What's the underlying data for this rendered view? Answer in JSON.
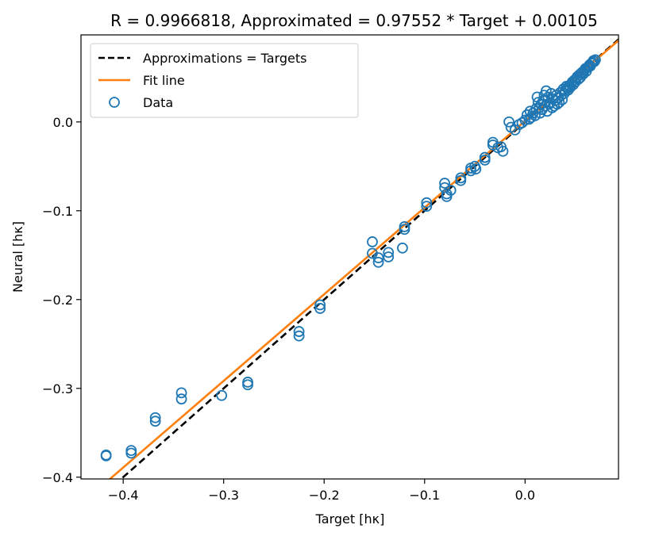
{
  "chart_data": {
    "type": "scatter",
    "title": "R = 0.9966818, Approximated = 0.97552 * Target + 0.00105",
    "xlabel": "Target [hκ]",
    "ylabel": "Neural [hκ]",
    "xlim": [
      -0.442,
      0.093
    ],
    "ylim": [
      -0.402,
      0.098
    ],
    "x_ticks": [
      -0.4,
      -0.3,
      -0.2,
      -0.1,
      0.0
    ],
    "x_tick_labels": [
      "−0.4",
      "−0.3",
      "−0.2",
      "−0.1",
      "0.0"
    ],
    "y_ticks": [
      -0.4,
      -0.3,
      -0.2,
      -0.1,
      0.0
    ],
    "y_tick_labels": [
      "−0.4",
      "−0.3",
      "−0.2",
      "−0.1",
      "0.0"
    ],
    "grid": false,
    "legend_position": "top-left",
    "legend": [
      "Approximations = Targets",
      "Fit line",
      "Data"
    ],
    "identity_line": {
      "name": "Approximations = Targets",
      "slope": 1,
      "intercept": 0,
      "color": "#000000",
      "style": "dashed"
    },
    "fit_line": {
      "name": "Fit line",
      "slope": 0.97552,
      "intercept": 0.00105,
      "color": "#ff7f0e"
    },
    "series": [
      {
        "name": "Data",
        "color": "#1f77b4",
        "marker": "open-circle",
        "points": [
          [
            -0.417,
            -0.375
          ],
          [
            -0.417,
            -0.376
          ],
          [
            -0.392,
            -0.37
          ],
          [
            -0.392,
            -0.373
          ],
          [
            -0.368,
            -0.333
          ],
          [
            -0.368,
            -0.337
          ],
          [
            -0.342,
            -0.305
          ],
          [
            -0.342,
            -0.312
          ],
          [
            -0.302,
            -0.308
          ],
          [
            -0.276,
            -0.293
          ],
          [
            -0.276,
            -0.296
          ],
          [
            -0.225,
            -0.236
          ],
          [
            -0.225,
            -0.241
          ],
          [
            -0.204,
            -0.206
          ],
          [
            -0.204,
            -0.21
          ],
          [
            -0.152,
            -0.135
          ],
          [
            -0.152,
            -0.148
          ],
          [
            -0.146,
            -0.153
          ],
          [
            -0.146,
            -0.158
          ],
          [
            -0.136,
            -0.147
          ],
          [
            -0.136,
            -0.152
          ],
          [
            -0.12,
            -0.118
          ],
          [
            -0.12,
            -0.121
          ],
          [
            -0.122,
            -0.142
          ],
          [
            -0.098,
            -0.091
          ],
          [
            -0.098,
            -0.095
          ],
          [
            -0.08,
            -0.069
          ],
          [
            -0.08,
            -0.074
          ],
          [
            -0.078,
            -0.081
          ],
          [
            -0.078,
            -0.084
          ],
          [
            -0.074,
            -0.077
          ],
          [
            -0.064,
            -0.063
          ],
          [
            -0.064,
            -0.066
          ],
          [
            -0.054,
            -0.052
          ],
          [
            -0.054,
            -0.055
          ],
          [
            -0.05,
            -0.05
          ],
          [
            -0.049,
            -0.053
          ],
          [
            -0.04,
            -0.04
          ],
          [
            -0.04,
            -0.043
          ],
          [
            -0.032,
            -0.023
          ],
          [
            -0.032,
            -0.026
          ],
          [
            -0.027,
            -0.029
          ],
          [
            -0.024,
            -0.028
          ],
          [
            -0.022,
            -0.033
          ],
          [
            -0.016,
            0.0
          ],
          [
            -0.014,
            -0.006
          ],
          [
            -0.01,
            -0.009
          ],
          [
            -0.006,
            -0.003
          ],
          [
            -0.003,
            -0.001
          ],
          [
            0.0,
            0.002
          ],
          [
            0.002,
            0.008
          ],
          [
            0.004,
            0.003
          ],
          [
            0.005,
            0.012
          ],
          [
            0.006,
            0.005
          ],
          [
            0.008,
            0.01
          ],
          [
            0.01,
            0.007
          ],
          [
            0.011,
            0.015
          ],
          [
            0.012,
            0.028
          ],
          [
            0.013,
            0.022
          ],
          [
            0.014,
            0.016
          ],
          [
            0.015,
            0.01
          ],
          [
            0.016,
            0.02
          ],
          [
            0.017,
            0.014
          ],
          [
            0.018,
            0.024
          ],
          [
            0.019,
            0.03
          ],
          [
            0.02,
            0.018
          ],
          [
            0.021,
            0.035
          ],
          [
            0.022,
            0.012
          ],
          [
            0.023,
            0.028
          ],
          [
            0.024,
            0.02
          ],
          [
            0.025,
            0.022
          ],
          [
            0.026,
            0.032
          ],
          [
            0.027,
            0.016
          ],
          [
            0.028,
            0.026
          ],
          [
            0.029,
            0.018
          ],
          [
            0.03,
            0.024
          ],
          [
            0.031,
            0.03
          ],
          [
            0.032,
            0.02
          ],
          [
            0.033,
            0.027
          ],
          [
            0.034,
            0.022
          ],
          [
            0.035,
            0.033
          ],
          [
            0.036,
            0.03
          ],
          [
            0.037,
            0.025
          ],
          [
            0.038,
            0.037
          ],
          [
            0.039,
            0.032
          ],
          [
            0.04,
            0.035
          ],
          [
            0.041,
            0.04
          ],
          [
            0.042,
            0.038
          ],
          [
            0.043,
            0.036
          ],
          [
            0.044,
            0.041
          ],
          [
            0.045,
            0.039
          ],
          [
            0.046,
            0.043
          ],
          [
            0.047,
            0.045
          ],
          [
            0.048,
            0.042
          ],
          [
            0.049,
            0.047
          ],
          [
            0.05,
            0.045
          ],
          [
            0.051,
            0.049
          ],
          [
            0.052,
            0.051
          ],
          [
            0.053,
            0.048
          ],
          [
            0.054,
            0.053
          ],
          [
            0.055,
            0.05
          ],
          [
            0.056,
            0.055
          ],
          [
            0.057,
            0.056
          ],
          [
            0.058,
            0.054
          ],
          [
            0.059,
            0.058
          ],
          [
            0.06,
            0.06
          ],
          [
            0.061,
            0.057
          ],
          [
            0.062,
            0.061
          ],
          [
            0.063,
            0.062
          ],
          [
            0.064,
            0.064
          ],
          [
            0.065,
            0.063
          ],
          [
            0.066,
            0.066
          ],
          [
            0.067,
            0.067
          ],
          [
            0.068,
            0.069
          ],
          [
            0.069,
            0.068
          ],
          [
            0.07,
            0.07
          ]
        ]
      }
    ]
  }
}
